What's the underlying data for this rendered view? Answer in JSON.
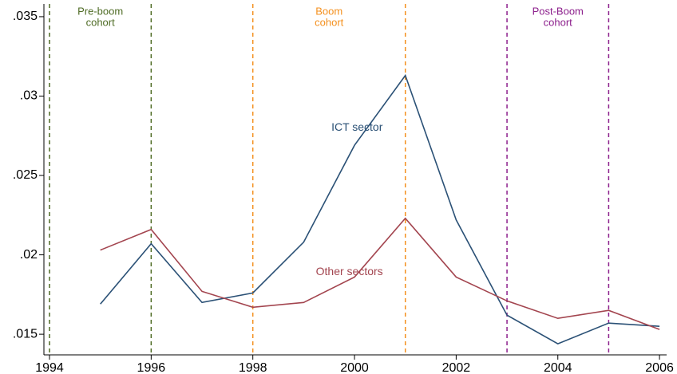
{
  "chart_data": {
    "type": "line",
    "x": [
      1995,
      1996,
      1997,
      1998,
      1999,
      2000,
      2001,
      2002,
      2003,
      2004,
      2005,
      2006
    ],
    "series": [
      {
        "name": "ICT sector",
        "color": "#2b5176",
        "values": [
          0.0169,
          0.0207,
          0.017,
          0.0176,
          0.0208,
          0.0269,
          0.0313,
          0.0222,
          0.0162,
          0.0144,
          0.0157,
          0.0155
        ]
      },
      {
        "name": "Other sectors",
        "color": "#a3454f",
        "values": [
          0.0203,
          0.0216,
          0.0177,
          0.0167,
          0.017,
          0.0186,
          0.0223,
          0.0186,
          0.0171,
          0.016,
          0.0165,
          0.0153
        ]
      }
    ],
    "xlim": [
      1993.89,
      2006.14
    ],
    "xticks": [
      1994,
      1996,
      1998,
      2000,
      2002,
      2004,
      2006
    ],
    "ylim": [
      0.0137,
      0.0358
    ],
    "yticks": [
      {
        "value": 0.015,
        "label": ".015"
      },
      {
        "value": 0.02,
        "label": ".02"
      },
      {
        "value": 0.025,
        "label": ".025"
      },
      {
        "value": 0.03,
        "label": ".03"
      },
      {
        "value": 0.035,
        "label": ".035"
      }
    ],
    "cohorts": [
      {
        "label": [
          "Pre-boom",
          "cohort"
        ],
        "color": "#4e6b24",
        "lines": [
          1994,
          1996
        ]
      },
      {
        "label": [
          "Boom",
          "cohort"
        ],
        "color": "#f4901e",
        "lines": [
          1998,
          2001
        ]
      },
      {
        "label": [
          "Post-Boom",
          "cohort"
        ],
        "color": "#8c1f8c",
        "lines": [
          2003,
          2005
        ]
      }
    ]
  }
}
